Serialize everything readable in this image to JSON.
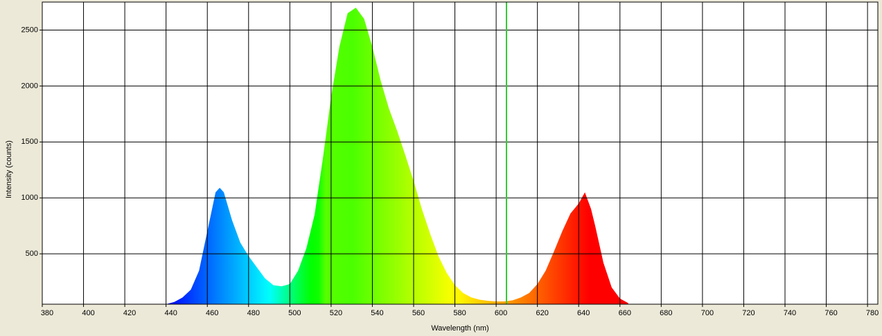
{
  "chart_data": {
    "type": "area",
    "x_label": "Wavelength (nm)",
    "y_label": "Intensity (counts)",
    "x": [
      440,
      444,
      448,
      452,
      456,
      460,
      464,
      466,
      468,
      472,
      476,
      480,
      484,
      488,
      492,
      496,
      500,
      504,
      508,
      512,
      516,
      520,
      524,
      528,
      532,
      536,
      540,
      544,
      548,
      552,
      556,
      560,
      564,
      568,
      572,
      576,
      580,
      584,
      588,
      592,
      596,
      600,
      604,
      608,
      612,
      616,
      620,
      624,
      628,
      632,
      636,
      640,
      643,
      646,
      648,
      652,
      656,
      660,
      664
    ],
    "values": [
      50,
      70,
      110,
      180,
      350,
      700,
      1050,
      1090,
      1050,
      800,
      600,
      480,
      380,
      280,
      220,
      210,
      230,
      350,
      550,
      850,
      1350,
      1900,
      2350,
      2650,
      2700,
      2600,
      2350,
      2050,
      1800,
      1600,
      1380,
      1150,
      900,
      680,
      480,
      330,
      220,
      150,
      110,
      90,
      80,
      75,
      75,
      85,
      110,
      150,
      230,
      350,
      520,
      700,
      860,
      950,
      1050,
      900,
      750,
      420,
      200,
      100,
      60
    ],
    "xlim": [
      380,
      785
    ],
    "ylim": [
      50,
      2750
    ],
    "xticks": [
      380,
      400,
      420,
      440,
      460,
      480,
      500,
      520,
      540,
      560,
      580,
      600,
      620,
      640,
      660,
      680,
      700,
      720,
      740,
      760,
      780
    ],
    "yticks": [
      500,
      1000,
      1500,
      2000,
      2500
    ],
    "grid": true,
    "cursor_x": 605,
    "cursor_color": "#33cc33"
  }
}
